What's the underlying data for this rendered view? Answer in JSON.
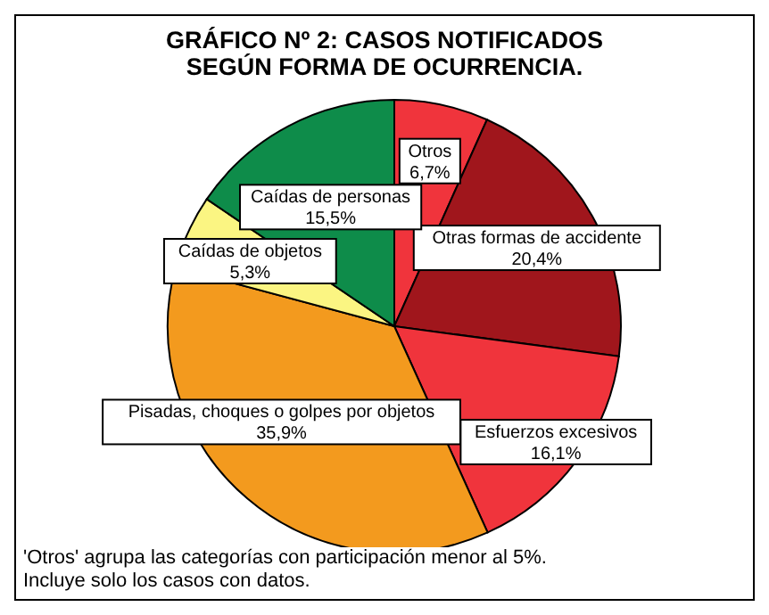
{
  "chart_data": {
    "type": "pie",
    "title": "GRÁFICO Nº 2: CASOS NOTIFICADOS SEGÚN FORMA DE OCURRENCIA.",
    "categories": [
      "Otros",
      "Otras formas de accidente",
      "Esfuerzos excesivos",
      "Pisadas, choques o golpes por objetos",
      "Caídas de objetos",
      "Caídas de personas"
    ],
    "values": [
      6.7,
      20.4,
      16.1,
      35.9,
      5.3,
      15.5
    ],
    "value_labels": [
      "6,7%",
      "20,4%",
      "16,1%",
      "35,9%",
      "5,3%",
      "15,5%"
    ],
    "colors": [
      "#f0343c",
      "#a0161c",
      "#f0343c",
      "#f39a1e",
      "#fbf582",
      "#0e8c4a"
    ],
    "legend": false,
    "annotations": [
      "'Otros' agrupa las categorías con participación menor al 5%.",
      "Incluye solo los casos con datos."
    ]
  }
}
